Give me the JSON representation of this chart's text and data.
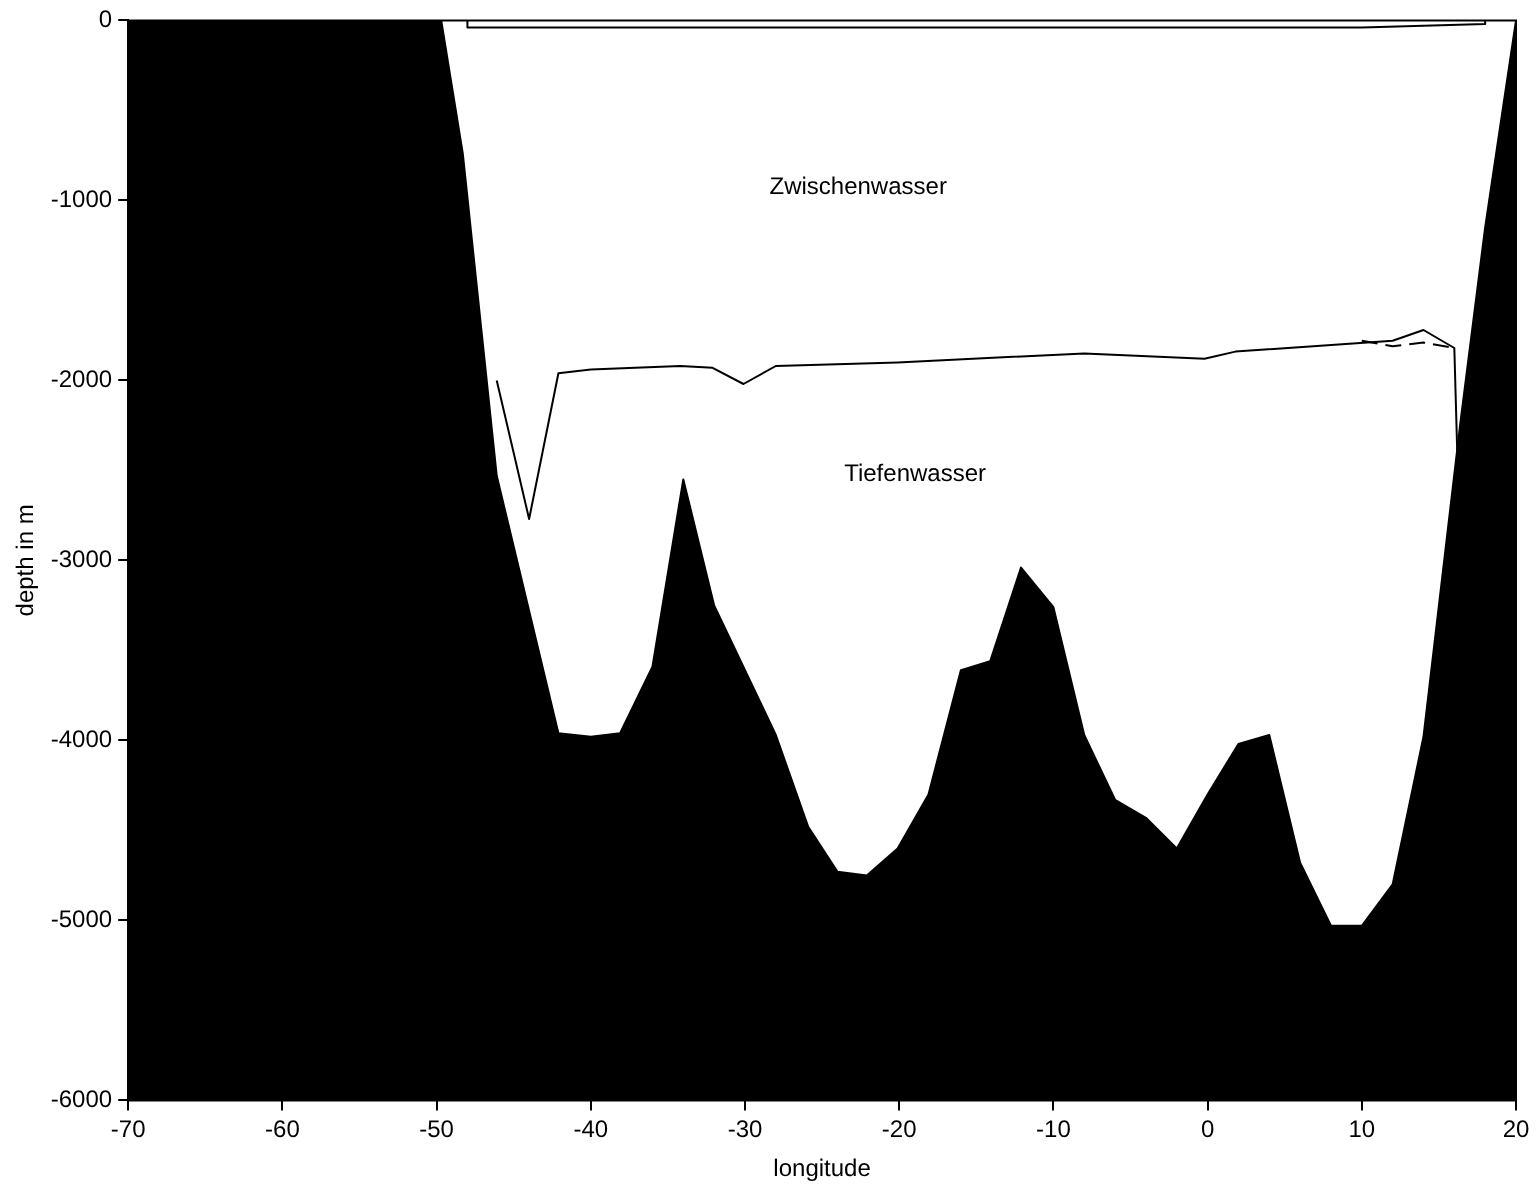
{
  "chart_data": {
    "type": "line",
    "xlabel": "longitude",
    "ylabel": "depth in m",
    "xlim": [
      -70,
      20
    ],
    "xticks": [
      -70,
      -60,
      -50,
      -40,
      -30,
      -20,
      -10,
      0,
      10,
      20
    ],
    "ylim": [
      -6000,
      0
    ],
    "yticks": [
      -6000,
      -5000,
      -4000,
      -3000,
      -2000,
      -1000,
      0
    ],
    "grid": false,
    "legend": false,
    "marker": "none",
    "series": [
      {
        "type": "area",
        "color": "#000000",
        "x": [
          -70,
          -70,
          -49.7,
          -48.3,
          -46.1,
          -42.1,
          -40,
          -38.1,
          -36,
          -34,
          -32,
          -28,
          -25.9,
          -24,
          -22.1,
          -20.1,
          -18.1,
          -16,
          -14.1,
          -12.1,
          -10,
          -8,
          -6,
          -4,
          -2,
          0,
          2,
          4,
          6,
          8,
          10,
          12,
          14,
          16.4,
          18,
          20,
          20
        ],
        "values": [
          -6000,
          0,
          0,
          -740,
          -2530,
          -3960,
          -3980,
          -3960,
          -3590,
          -2550,
          -3250,
          -3970,
          -4480,
          -4730,
          -4750,
          -4600,
          -4300,
          -3610,
          -3560,
          -3040,
          -3260,
          -3970,
          -4330,
          -4430,
          -4600,
          -4300,
          -4020,
          -3970,
          -4680,
          -5030,
          -5030,
          -4800,
          -3980,
          -2230,
          -1150,
          0,
          -6000
        ]
      },
      {
        "type": "line",
        "color": "#000000",
        "line_style": "solid",
        "x": [
          -46.1,
          -44,
          -42.1,
          -40,
          -34.2,
          -32.1,
          -30.1,
          -28,
          -20.1,
          -8,
          -0.2,
          1.8,
          12,
          14,
          16,
          16.2
        ],
        "values": [
          -2000,
          -2770,
          -1960,
          -1940,
          -1920,
          -1930,
          -2020,
          -1920,
          -1900,
          -1850,
          -1880,
          -1840,
          -1780,
          -1720,
          -1820,
          -2430
        ]
      },
      {
        "type": "line",
        "color": "#000000",
        "line_style": "dashed",
        "x": [
          10,
          12,
          14,
          16
        ],
        "values": [
          -1780,
          -1810,
          -1790,
          -1820
        ]
      },
      {
        "type": "line",
        "color": "#000000",
        "line_style": "solid",
        "x": [
          -48,
          -48,
          -40,
          -30,
          -20,
          -10,
          0,
          10,
          18,
          18
        ],
        "values": [
          0,
          -40,
          -40,
          -40,
          -40,
          -40,
          -40,
          -40,
          -20,
          0
        ]
      }
    ],
    "annotations": [
      "Zwischenwasser",
      "Tiefenwasser"
    ]
  }
}
